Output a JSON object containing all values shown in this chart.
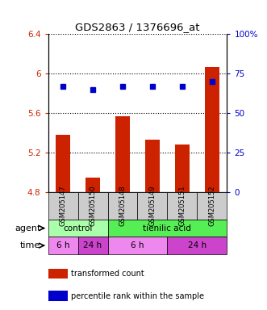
{
  "title": "GDS2863 / 1376696_at",
  "samples": [
    "GSM205147",
    "GSM205150",
    "GSM205148",
    "GSM205149",
    "GSM205151",
    "GSM205152"
  ],
  "bar_values": [
    5.38,
    4.95,
    5.57,
    5.33,
    5.28,
    6.07
  ],
  "bar_bottom": 4.8,
  "dot_values": [
    67,
    65,
    67,
    67,
    67,
    70
  ],
  "left_ylim": [
    4.8,
    6.4
  ],
  "right_ylim": [
    0,
    100
  ],
  "left_yticks": [
    4.8,
    5.2,
    5.6,
    6.0,
    6.4
  ],
  "right_yticks": [
    0,
    25,
    50,
    75,
    100
  ],
  "left_ytick_labels": [
    "4.8",
    "5.2",
    "5.6",
    "6",
    "6.4"
  ],
  "right_ytick_labels": [
    "0",
    "25",
    "50",
    "75",
    "100%"
  ],
  "bar_color": "#cc2200",
  "dot_color": "#0000cc",
  "agent_row": [
    {
      "label": "control",
      "start": 0,
      "end": 2,
      "color": "#aaffaa"
    },
    {
      "label": "tienilic acid",
      "start": 2,
      "end": 6,
      "color": "#55ee55"
    }
  ],
  "time_row": [
    {
      "label": "6 h",
      "start": 0,
      "end": 1,
      "color": "#ee88ee"
    },
    {
      "label": "24 h",
      "start": 1,
      "end": 2,
      "color": "#cc44cc"
    },
    {
      "label": "6 h",
      "start": 2,
      "end": 4,
      "color": "#ee88ee"
    },
    {
      "label": "24 h",
      "start": 4,
      "end": 6,
      "color": "#cc44cc"
    }
  ],
  "legend_bar_label": "transformed count",
  "legend_dot_label": "percentile rank within the sample",
  "agent_label": "agent",
  "time_label": "time",
  "sample_box_color": "#cccccc"
}
